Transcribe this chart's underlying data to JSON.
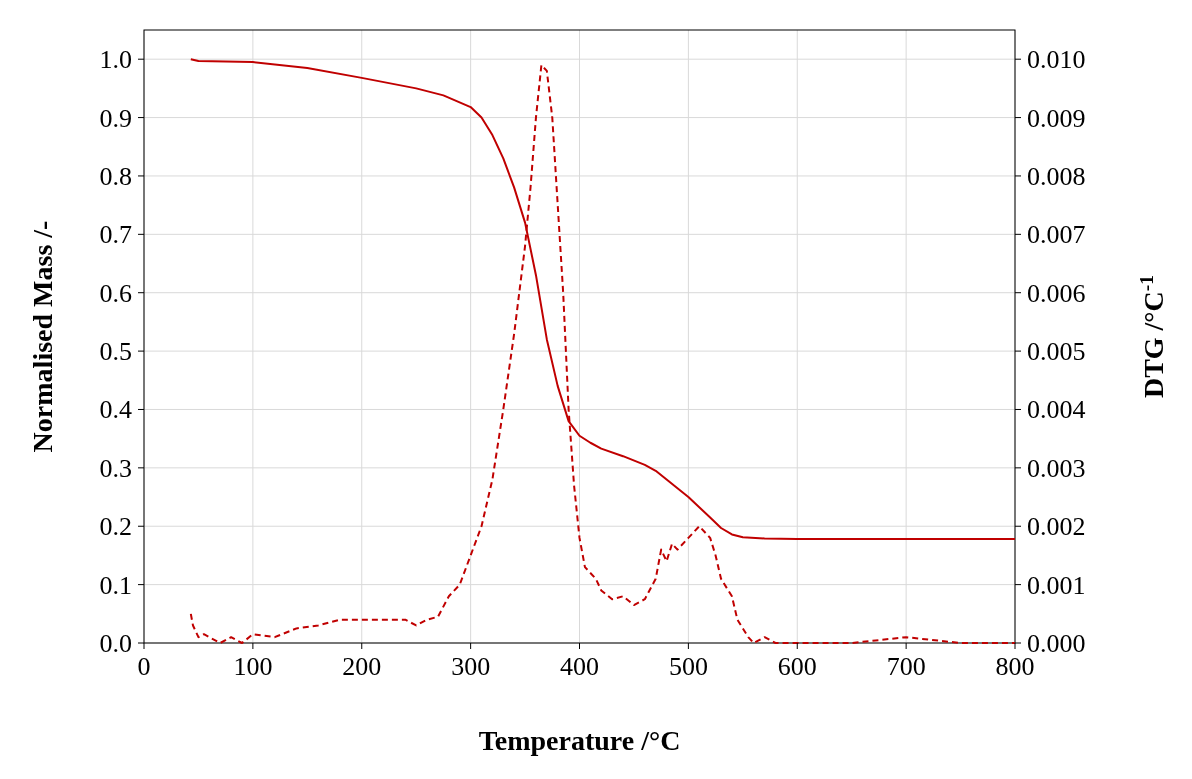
{
  "chart_data": {
    "type": "line",
    "xlabel": "Temperature /°C",
    "ylabel": "Normalised Mass /-",
    "y2label": "DTG  /°C$^{-1}$",
    "xlim": [
      0,
      800
    ],
    "xticks": [
      0,
      100,
      200,
      300,
      400,
      500,
      600,
      700,
      800
    ],
    "ylim": [
      0,
      1.05
    ],
    "yticks": [
      {
        "value": 0,
        "label": "0.0"
      },
      0.1,
      0.2,
      0.3,
      0.4,
      0.5,
      0.6,
      0.7,
      0.8,
      0.9,
      {
        "value": 1,
        "label": "1.0"
      }
    ],
    "y2lim": [
      0,
      0.0105
    ],
    "y2ticks": [
      {
        "value": 0,
        "label": "0.000"
      },
      0.001,
      0.002,
      0.003,
      0.004,
      0.005,
      0.006,
      0.007,
      0.008,
      0.009,
      {
        "value": 0.01,
        "label": "0.010"
      }
    ],
    "grid": true,
    "series": [
      {
        "color": "#c00000",
        "line_style": "solid",
        "x": [
          43,
          50,
          100,
          150,
          200,
          250,
          275,
          300,
          310,
          320,
          330,
          340,
          350,
          360,
          370,
          380,
          390,
          400,
          410,
          420,
          440,
          460,
          470,
          480,
          500,
          520,
          530,
          540,
          550,
          570,
          600,
          700,
          800
        ],
        "values": [
          1.0,
          0.997,
          0.995,
          0.985,
          0.968,
          0.95,
          0.938,
          0.918,
          0.9,
          0.87,
          0.83,
          0.78,
          0.72,
          0.63,
          0.52,
          0.44,
          0.38,
          0.355,
          0.343,
          0.333,
          0.32,
          0.305,
          0.295,
          0.28,
          0.25,
          0.215,
          0.197,
          0.186,
          0.181,
          0.179,
          0.178,
          0.178,
          0.178
        ]
      },
      {
        "color": "#c00000",
        "line_style": "dashed",
        "axis": "y2",
        "x": [
          43,
          45,
          50,
          55,
          60,
          70,
          80,
          90,
          100,
          120,
          140,
          160,
          180,
          200,
          220,
          240,
          250,
          260,
          270,
          280,
          290,
          300,
          310,
          320,
          330,
          340,
          350,
          355,
          360,
          365,
          370,
          375,
          380,
          385,
          390,
          395,
          400,
          405,
          410,
          415,
          420,
          430,
          440,
          450,
          460,
          470,
          475,
          480,
          485,
          490,
          500,
          510,
          520,
          525,
          530,
          540,
          545,
          555,
          560,
          570,
          580,
          600,
          650,
          700,
          750,
          800
        ],
        "values": [
          0.0005,
          0.0003,
          0.0001,
          0.00015,
          0.0001,
          0,
          0.0001,
          0,
          0.00015,
          0.0001,
          0.00025,
          0.0003,
          0.0004,
          0.0004,
          0.0004,
          0.0004,
          0.0003,
          0.0004,
          0.00045,
          0.0008,
          0.001,
          0.0015,
          0.002,
          0.0028,
          0.004,
          0.0053,
          0.0068,
          0.0078,
          0.009,
          0.0099,
          0.0098,
          0.009,
          0.0075,
          0.006,
          0.004,
          0.0027,
          0.0018,
          0.0013,
          0.0012,
          0.0011,
          0.0009,
          0.00075,
          0.0008,
          0.00065,
          0.00075,
          0.0011,
          0.0016,
          0.0014,
          0.0017,
          0.0016,
          0.0018,
          0.002,
          0.0018,
          0.0015,
          0.0011,
          0.0008,
          0.0004,
          0.0001,
          0,
          0.0001,
          0,
          0,
          0,
          0.0001,
          0,
          0
        ]
      }
    ]
  }
}
